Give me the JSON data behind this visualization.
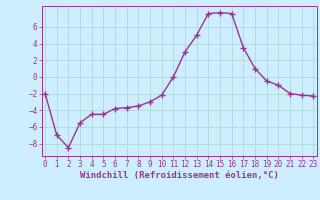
{
  "x": [
    0,
    1,
    2,
    3,
    4,
    5,
    6,
    7,
    8,
    9,
    10,
    11,
    12,
    13,
    14,
    15,
    16,
    17,
    18,
    19,
    20,
    21,
    22,
    23
  ],
  "y": [
    -2,
    -7,
    -8.5,
    -5.5,
    -4.5,
    -4.5,
    -3.8,
    -3.7,
    -3.5,
    -3.0,
    -2.2,
    0.0,
    3.0,
    5.0,
    7.6,
    7.7,
    7.6,
    3.5,
    1.0,
    -0.5,
    -1.0,
    -2.0,
    -2.2,
    -2.3
  ],
  "line_color": "#993399",
  "marker": "+",
  "marker_size": 4,
  "marker_linewidth": 1.0,
  "background_color": "#cceeff",
  "grid_color": "#b0d8d8",
  "tick_label_color": "#993399",
  "xlabel": "Windchill (Refroidissement éolien,°C)",
  "xlabel_color": "#993399",
  "xlabel_fontsize": 6.5,
  "tick_fontsize": 5.5,
  "ylim": [
    -9.5,
    8.5
  ],
  "xlim": [
    -0.3,
    23.3
  ],
  "yticks": [
    -8,
    -6,
    -4,
    -2,
    0,
    2,
    4,
    6
  ],
  "xticks": [
    0,
    1,
    2,
    3,
    4,
    5,
    6,
    7,
    8,
    9,
    10,
    11,
    12,
    13,
    14,
    15,
    16,
    17,
    18,
    19,
    20,
    21,
    22,
    23
  ],
  "line_width": 1.0,
  "spine_color": "#993399"
}
